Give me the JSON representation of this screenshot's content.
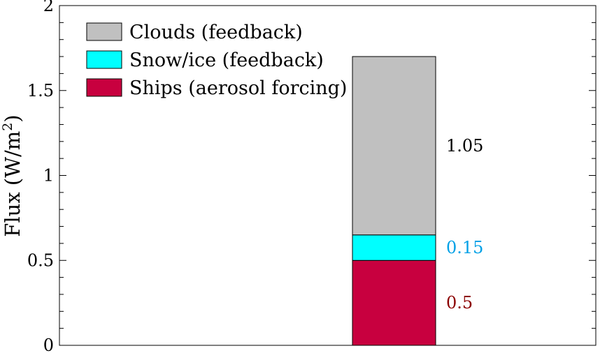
{
  "chart_data": {
    "type": "bar",
    "stacked": true,
    "categories": [
      ""
    ],
    "ylabel": "Flux (W/m",
    "ylabel_sup": "2",
    "ylabel_close": ")",
    "ylim": [
      0,
      2
    ],
    "yticks": [
      0,
      0.5,
      1,
      1.5,
      2
    ],
    "ytick_labels": [
      "0",
      "0.5",
      "1",
      "1.5",
      "2"
    ],
    "grid": false,
    "legend_position": "top-left",
    "series": [
      {
        "name": "Ships (aerosol forcing)",
        "values": [
          0.5
        ],
        "label": "0.5",
        "color": "#c8003f",
        "label_color": "#8b0000"
      },
      {
        "name": "Snow/ice (feedback)",
        "values": [
          0.15
        ],
        "label": "0.15",
        "color": "#00ffff",
        "label_color": "#00a0e6"
      },
      {
        "name": "Clouds (feedback)",
        "values": [
          1.05
        ],
        "label": "1.05",
        "color": "#c0c0c0",
        "label_color": "#000000"
      }
    ],
    "legend_order": [
      2,
      1,
      0
    ]
  }
}
